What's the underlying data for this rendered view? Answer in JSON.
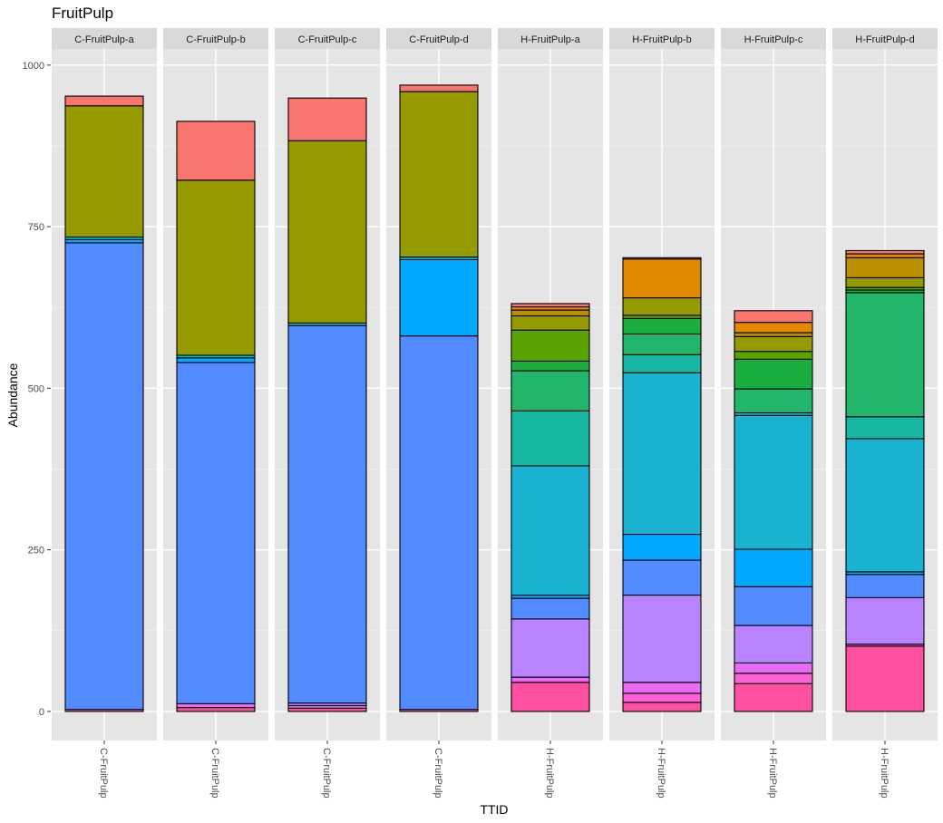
{
  "chart_data": {
    "type": "bar",
    "stacked": true,
    "title": "FruitPulp",
    "xlabel": "TTID",
    "ylabel": "Abundance",
    "ylim": [
      -45,
      1025
    ],
    "yticks": [
      0,
      250,
      500,
      750,
      1000
    ],
    "grid": true,
    "legend": "none",
    "panels": [
      {
        "name": "C-FruitPulp-a",
        "category": "C-FruitPulp",
        "segments": [
          {
            "value": 3,
            "color": "#FB61D7"
          },
          {
            "value": 722,
            "color": "#518BFF"
          },
          {
            "value": 5,
            "color": "#00A9FF"
          },
          {
            "value": 4,
            "color": "#00BCD8"
          },
          {
            "value": 203,
            "color": "#949A00"
          },
          {
            "value": 15,
            "color": "#F8766D"
          }
        ]
      },
      {
        "name": "C-FruitPulp-b",
        "category": "C-FruitPulp",
        "segments": [
          {
            "value": 6,
            "color": "#FF4FA0"
          },
          {
            "value": 6,
            "color": "#E76BF3"
          },
          {
            "value": 528,
            "color": "#518BFF"
          },
          {
            "value": 7,
            "color": "#00A9FF"
          },
          {
            "value": 4,
            "color": "#00BCD8"
          },
          {
            "value": 271,
            "color": "#949A00"
          },
          {
            "value": 91,
            "color": "#F8766D"
          }
        ]
      },
      {
        "name": "C-FruitPulp-c",
        "category": "C-FruitPulp",
        "segments": [
          {
            "value": 5,
            "color": "#FF4FA0"
          },
          {
            "value": 4,
            "color": "#E76BF3"
          },
          {
            "value": 4,
            "color": "#B983FF"
          },
          {
            "value": 584,
            "color": "#518BFF"
          },
          {
            "value": 4,
            "color": "#00BCD8"
          },
          {
            "value": 282,
            "color": "#949A00"
          },
          {
            "value": 66,
            "color": "#F8766D"
          }
        ]
      },
      {
        "name": "C-FruitPulp-d",
        "category": "C-FruitPulp",
        "segments": [
          {
            "value": 3,
            "color": "#FB61D7"
          },
          {
            "value": 578,
            "color": "#518BFF"
          },
          {
            "value": 118,
            "color": "#00A9FF"
          },
          {
            "value": 4,
            "color": "#00BCD8"
          },
          {
            "value": 256,
            "color": "#949A00"
          },
          {
            "value": 10,
            "color": "#F8766D"
          }
        ]
      },
      {
        "name": "H-FruitPulp-a",
        "category": "H-FruitPulp",
        "segments": [
          {
            "value": 45,
            "color": "#FF4FA0"
          },
          {
            "value": 8,
            "color": "#E76BF3"
          },
          {
            "value": 90,
            "color": "#B983FF"
          },
          {
            "value": 32,
            "color": "#518BFF"
          },
          {
            "value": 5,
            "color": "#00A9FF"
          },
          {
            "value": 200,
            "color": "#19B2D0"
          },
          {
            "value": 85,
            "color": "#16B6A0"
          },
          {
            "value": 62,
            "color": "#21B66B"
          },
          {
            "value": 15,
            "color": "#1AAE40"
          },
          {
            "value": 48,
            "color": "#5BA300"
          },
          {
            "value": 22,
            "color": "#949A00"
          },
          {
            "value": 9,
            "color": "#BA8E00"
          },
          {
            "value": 5,
            "color": "#E18A00"
          },
          {
            "value": 5,
            "color": "#F8766D"
          }
        ]
      },
      {
        "name": "H-FruitPulp-b",
        "category": "H-FruitPulp",
        "segments": [
          {
            "value": 14,
            "color": "#FF4FA0"
          },
          {
            "value": 14,
            "color": "#FB61D7"
          },
          {
            "value": 17,
            "color": "#E76BF3"
          },
          {
            "value": 135,
            "color": "#B983FF"
          },
          {
            "value": 54,
            "color": "#518BFF"
          },
          {
            "value": 40,
            "color": "#00A9FF"
          },
          {
            "value": 250,
            "color": "#19B2D0"
          },
          {
            "value": 28,
            "color": "#16B6A0"
          },
          {
            "value": 32,
            "color": "#21B66B"
          },
          {
            "value": 24,
            "color": "#1AAE40"
          },
          {
            "value": 5,
            "color": "#5BA300"
          },
          {
            "value": 27,
            "color": "#949A00"
          },
          {
            "value": 60,
            "color": "#E18A00"
          },
          {
            "value": 2,
            "color": "#F8766D"
          }
        ]
      },
      {
        "name": "H-FruitPulp-c",
        "category": "H-FruitPulp",
        "segments": [
          {
            "value": 43,
            "color": "#FF4FA0"
          },
          {
            "value": 16,
            "color": "#FB61D7"
          },
          {
            "value": 16,
            "color": "#E76BF3"
          },
          {
            "value": 58,
            "color": "#B983FF"
          },
          {
            "value": 60,
            "color": "#518BFF"
          },
          {
            "value": 58,
            "color": "#00A9FF"
          },
          {
            "value": 207,
            "color": "#19B2D0"
          },
          {
            "value": 4,
            "color": "#00BCD8"
          },
          {
            "value": 37,
            "color": "#21B66B"
          },
          {
            "value": 46,
            "color": "#1AAE40"
          },
          {
            "value": 12,
            "color": "#5BA300"
          },
          {
            "value": 23,
            "color": "#949A00"
          },
          {
            "value": 6,
            "color": "#BA8E00"
          },
          {
            "value": 16,
            "color": "#E18A00"
          },
          {
            "value": 18,
            "color": "#F8766D"
          }
        ]
      },
      {
        "name": "H-FruitPulp-d",
        "category": "H-FruitPulp",
        "segments": [
          {
            "value": 101,
            "color": "#FF4FA0"
          },
          {
            "value": 3,
            "color": "#FB61D7"
          },
          {
            "value": 72,
            "color": "#B983FF"
          },
          {
            "value": 36,
            "color": "#518BFF"
          },
          {
            "value": 4,
            "color": "#00A9FF"
          },
          {
            "value": 206,
            "color": "#19B2D0"
          },
          {
            "value": 34,
            "color": "#16B6A0"
          },
          {
            "value": 192,
            "color": "#21B66B"
          },
          {
            "value": 4,
            "color": "#1AAE40"
          },
          {
            "value": 4,
            "color": "#5BA300"
          },
          {
            "value": 15,
            "color": "#949A00"
          },
          {
            "value": 31,
            "color": "#BA8E00"
          },
          {
            "value": 6,
            "color": "#E18A00"
          },
          {
            "value": 5,
            "color": "#F8766D"
          }
        ]
      }
    ]
  }
}
